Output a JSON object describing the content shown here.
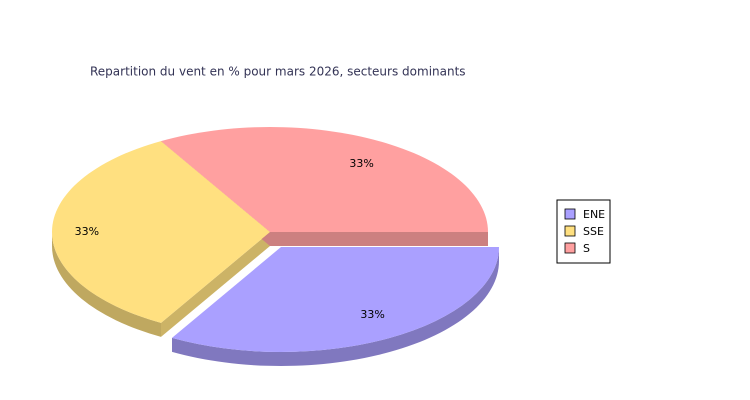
{
  "chart_data": {
    "type": "pie",
    "title": "Repartition du vent en % pour mars 2026, secteurs dominants",
    "categories": [
      "ENE",
      "SSE",
      "S"
    ],
    "values": [
      33,
      33,
      33
    ],
    "value_labels": [
      "33%",
      "33%",
      "33%"
    ],
    "colors": [
      "#aaa0ff",
      "#ffe080",
      "#ffa0a0"
    ],
    "exploded": [
      true,
      false,
      false
    ],
    "legend": "right"
  }
}
